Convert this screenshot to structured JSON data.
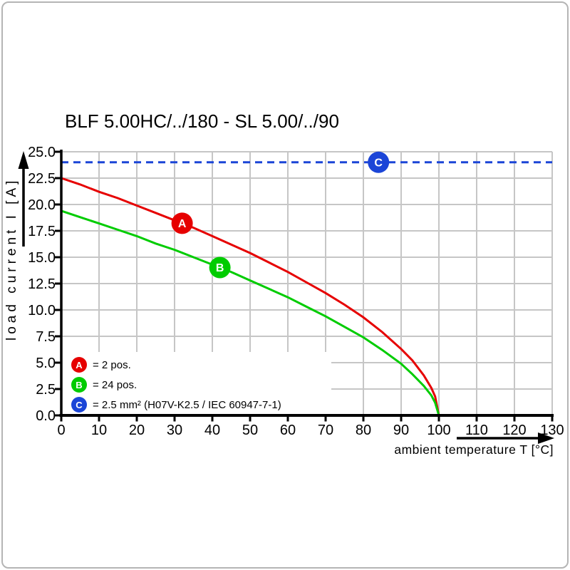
{
  "chart_data": {
    "type": "line",
    "title": "BLF 5.00HC/../180 - SL 5.00/../90",
    "xlabel": "ambient temperature T [°C]",
    "ylabel": "load current I [A]",
    "xlim": [
      0,
      130
    ],
    "ylim": [
      0,
      25
    ],
    "x_ticks": [
      0,
      10,
      20,
      30,
      40,
      50,
      60,
      70,
      80,
      90,
      100,
      110,
      120,
      130
    ],
    "y_ticks": [
      0,
      2.5,
      5,
      7.5,
      10,
      12.5,
      15,
      17.5,
      20,
      22.5,
      25
    ],
    "grid": true,
    "legend_position": "lower-left",
    "style": {
      "grid_color": "#c6c6c6",
      "axis_color": "#000000",
      "background": "#ffffff",
      "frame_border_color": "#b5b5b5"
    },
    "series": [
      {
        "name": "A",
        "label": "2 pos.",
        "color": "#e60000",
        "line_style": "solid",
        "points": [
          [
            0,
            22.5
          ],
          [
            5,
            21.9
          ],
          [
            10,
            21.2
          ],
          [
            15,
            20.6
          ],
          [
            20,
            19.9
          ],
          [
            25,
            19.2
          ],
          [
            30,
            18.5
          ],
          [
            35,
            17.8
          ],
          [
            40,
            17.0
          ],
          [
            45,
            16.2
          ],
          [
            50,
            15.4
          ],
          [
            55,
            14.5
          ],
          [
            60,
            13.6
          ],
          [
            65,
            12.6
          ],
          [
            70,
            11.6
          ],
          [
            75,
            10.5
          ],
          [
            80,
            9.3
          ],
          [
            85,
            7.9
          ],
          [
            90,
            6.3
          ],
          [
            93,
            5.2
          ],
          [
            96,
            3.8
          ],
          [
            98,
            2.6
          ],
          [
            99,
            1.8
          ],
          [
            100,
            0
          ]
        ]
      },
      {
        "name": "B",
        "label": "24 pos.",
        "color": "#00cc00",
        "line_style": "solid",
        "points": [
          [
            0,
            19.4
          ],
          [
            5,
            18.8
          ],
          [
            10,
            18.2
          ],
          [
            15,
            17.6
          ],
          [
            20,
            17.0
          ],
          [
            25,
            16.3
          ],
          [
            30,
            15.7
          ],
          [
            35,
            15.0
          ],
          [
            40,
            14.3
          ],
          [
            45,
            13.6
          ],
          [
            50,
            12.8
          ],
          [
            55,
            12.0
          ],
          [
            60,
            11.2
          ],
          [
            65,
            10.3
          ],
          [
            70,
            9.4
          ],
          [
            75,
            8.4
          ],
          [
            80,
            7.4
          ],
          [
            85,
            6.2
          ],
          [
            90,
            4.9
          ],
          [
            93,
            3.9
          ],
          [
            96,
            2.8
          ],
          [
            98,
            1.9
          ],
          [
            99,
            1.2
          ],
          [
            100,
            0
          ]
        ]
      },
      {
        "name": "C",
        "label": "2.5 mm² (H07V-K2.5 / IEC 60947-7-1)",
        "color": "#1b45d7",
        "line_style": "dashed",
        "points": [
          [
            0,
            24
          ],
          [
            130,
            24
          ]
        ]
      }
    ],
    "markers": [
      {
        "letter": "A",
        "series": "A",
        "t": 32
      },
      {
        "letter": "B",
        "series": "B",
        "t": 42
      },
      {
        "letter": "C",
        "series": "C",
        "t": 84
      }
    ]
  },
  "legend": {
    "items": [
      {
        "letter": "A",
        "color": "#e60000",
        "text": "= 2 pos."
      },
      {
        "letter": "B",
        "color": "#00cc00",
        "text": "= 24 pos."
      },
      {
        "letter": "C",
        "color": "#1b45d7",
        "text": "= 2.5 mm² (H07V-K2.5 / IEC 60947-7-1)"
      }
    ]
  }
}
